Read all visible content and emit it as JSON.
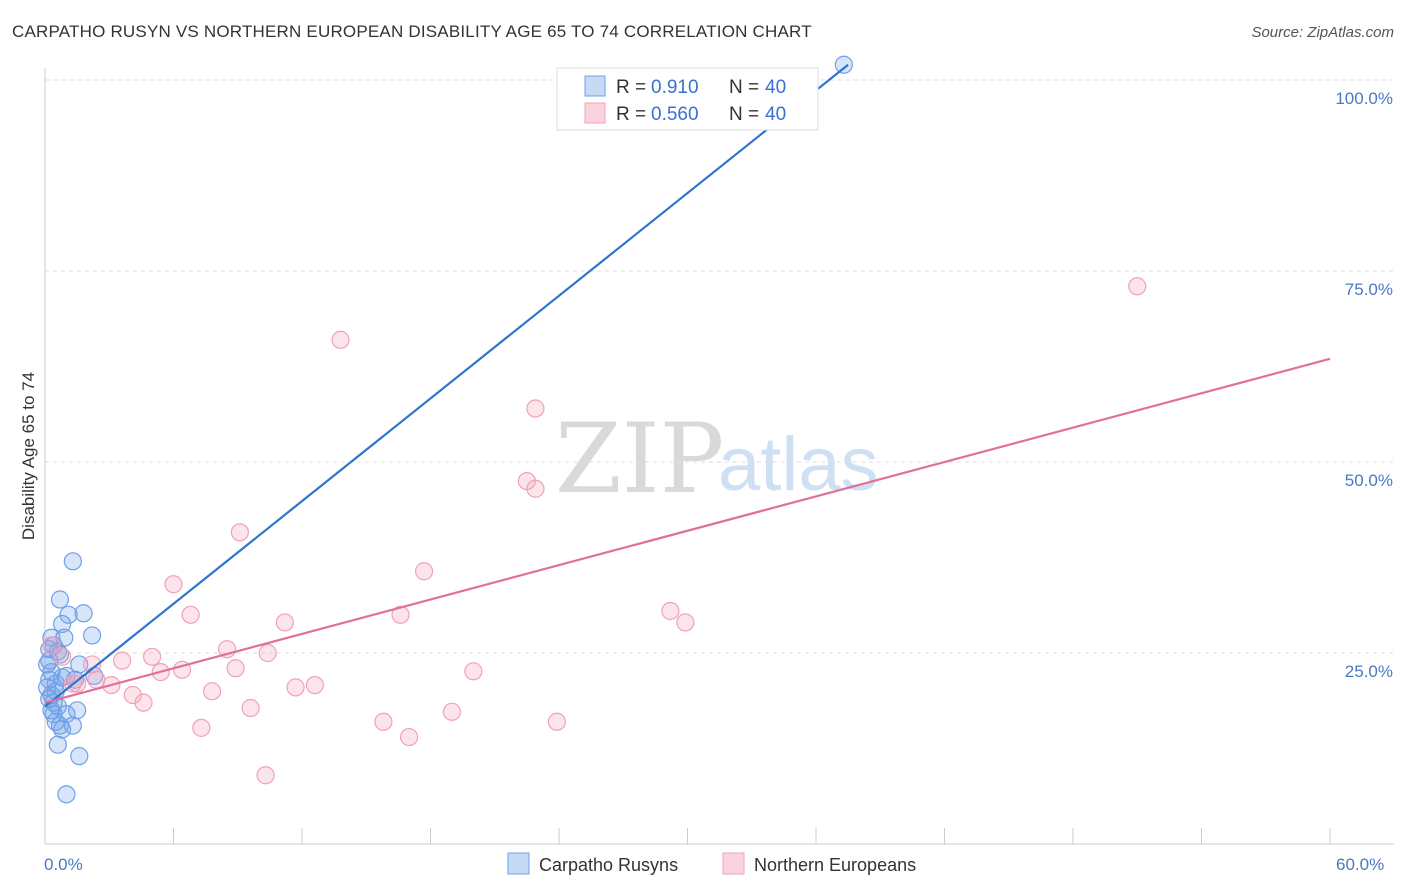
{
  "title": "CARPATHO RUSYN VS NORTHERN EUROPEAN DISABILITY AGE 65 TO 74 CORRELATION CHART",
  "source": "Source: ZipAtlas.com",
  "watermark": {
    "zip": "ZIP",
    "atlas": "atlas"
  },
  "colors": {
    "blue": "#6fa0e8",
    "blue_line": "#2f74d0",
    "pink": "#f2a0b8",
    "pink_line": "#e0709a"
  },
  "chart_data": {
    "type": "scatter",
    "xlabel": "",
    "ylabel": "Disability Age 65 to 74",
    "xlim": [
      0,
      60
    ],
    "ylim": [
      0,
      100
    ],
    "x_tick_labels": [
      "0.0%",
      "60.0%"
    ],
    "y_ticks": [
      {
        "value": 25,
        "label": "25.0%"
      },
      {
        "value": 50,
        "label": "50.0%"
      },
      {
        "value": 75,
        "label": "75.0%"
      },
      {
        "value": 100,
        "label": "100.0%"
      }
    ],
    "legend": {
      "rows": [
        {
          "r_label": "R =",
          "r_value": "0.910",
          "n_label": "N =",
          "n_value": "40"
        },
        {
          "r_label": "R =",
          "r_value": "0.560",
          "n_label": "N =",
          "n_value": "40"
        }
      ]
    },
    "series": [
      {
        "name": "Carpatho Rusyns",
        "color": "#6fa0e8",
        "trend": {
          "x": [
            0.0,
            37.5
          ],
          "y": [
            18.0,
            102.0
          ]
        },
        "points": [
          {
            "x": 37.3,
            "y": 102.0
          },
          {
            "x": 1.3,
            "y": 37.0
          },
          {
            "x": 0.7,
            "y": 32.0
          },
          {
            "x": 1.8,
            "y": 30.2
          },
          {
            "x": 1.1,
            "y": 30.0
          },
          {
            "x": 0.8,
            "y": 28.8
          },
          {
            "x": 2.2,
            "y": 27.3
          },
          {
            "x": 0.3,
            "y": 27.0
          },
          {
            "x": 0.9,
            "y": 27.0
          },
          {
            "x": 0.4,
            "y": 26.0
          },
          {
            "x": 0.2,
            "y": 25.5
          },
          {
            "x": 0.6,
            "y": 25.2
          },
          {
            "x": 0.7,
            "y": 24.8
          },
          {
            "x": 1.6,
            "y": 23.5
          },
          {
            "x": 0.1,
            "y": 23.5
          },
          {
            "x": 0.3,
            "y": 22.5
          },
          {
            "x": 1.0,
            "y": 22.0
          },
          {
            "x": 0.8,
            "y": 21.8
          },
          {
            "x": 2.3,
            "y": 22.0
          },
          {
            "x": 0.2,
            "y": 21.5
          },
          {
            "x": 1.4,
            "y": 21.5
          },
          {
            "x": 0.5,
            "y": 21.0
          },
          {
            "x": 0.1,
            "y": 20.5
          },
          {
            "x": 0.5,
            "y": 20.0
          },
          {
            "x": 0.3,
            "y": 19.5
          },
          {
            "x": 0.2,
            "y": 19.0
          },
          {
            "x": 0.4,
            "y": 18.5
          },
          {
            "x": 0.6,
            "y": 18.0
          },
          {
            "x": 0.3,
            "y": 17.5
          },
          {
            "x": 1.5,
            "y": 17.5
          },
          {
            "x": 0.4,
            "y": 17.0
          },
          {
            "x": 1.0,
            "y": 17.0
          },
          {
            "x": 0.5,
            "y": 16.0
          },
          {
            "x": 0.7,
            "y": 15.5
          },
          {
            "x": 1.3,
            "y": 15.5
          },
          {
            "x": 0.8,
            "y": 15.0
          },
          {
            "x": 0.6,
            "y": 13.0
          },
          {
            "x": 1.6,
            "y": 11.5
          },
          {
            "x": 1.0,
            "y": 6.5
          },
          {
            "x": 0.2,
            "y": 24.0
          }
        ]
      },
      {
        "name": "Northern Europeans",
        "color": "#f2a0b8",
        "trend": {
          "x": [
            0.0,
            60.0
          ],
          "y": [
            18.5,
            63.5
          ]
        },
        "points": [
          {
            "x": 51.0,
            "y": 73.0
          },
          {
            "x": 13.8,
            "y": 66.0
          },
          {
            "x": 22.9,
            "y": 57.0
          },
          {
            "x": 22.5,
            "y": 47.5
          },
          {
            "x": 22.9,
            "y": 46.5
          },
          {
            "x": 9.1,
            "y": 40.8
          },
          {
            "x": 17.7,
            "y": 35.7
          },
          {
            "x": 6.0,
            "y": 34.0
          },
          {
            "x": 29.2,
            "y": 30.5
          },
          {
            "x": 29.9,
            "y": 29.0
          },
          {
            "x": 6.8,
            "y": 30.0
          },
          {
            "x": 16.6,
            "y": 30.0
          },
          {
            "x": 11.2,
            "y": 29.0
          },
          {
            "x": 8.5,
            "y": 25.5
          },
          {
            "x": 10.4,
            "y": 25.0
          },
          {
            "x": 5.0,
            "y": 24.5
          },
          {
            "x": 3.6,
            "y": 24.0
          },
          {
            "x": 2.2,
            "y": 23.5
          },
          {
            "x": 8.9,
            "y": 23.0
          },
          {
            "x": 6.4,
            "y": 22.8
          },
          {
            "x": 5.4,
            "y": 22.5
          },
          {
            "x": 20.0,
            "y": 22.6
          },
          {
            "x": 2.4,
            "y": 21.5
          },
          {
            "x": 1.3,
            "y": 21.0
          },
          {
            "x": 3.1,
            "y": 20.8
          },
          {
            "x": 11.7,
            "y": 20.5
          },
          {
            "x": 12.6,
            "y": 20.8
          },
          {
            "x": 7.8,
            "y": 20.0
          },
          {
            "x": 4.1,
            "y": 19.5
          },
          {
            "x": 4.6,
            "y": 18.5
          },
          {
            "x": 9.6,
            "y": 17.8
          },
          {
            "x": 19.0,
            "y": 17.3
          },
          {
            "x": 15.8,
            "y": 16.0
          },
          {
            "x": 23.9,
            "y": 16.0
          },
          {
            "x": 7.3,
            "y": 15.2
          },
          {
            "x": 17.0,
            "y": 14.0
          },
          {
            "x": 10.3,
            "y": 9.0
          },
          {
            "x": 0.3,
            "y": 26.0
          },
          {
            "x": 0.8,
            "y": 24.5
          },
          {
            "x": 1.5,
            "y": 21.0
          }
        ]
      }
    ]
  }
}
